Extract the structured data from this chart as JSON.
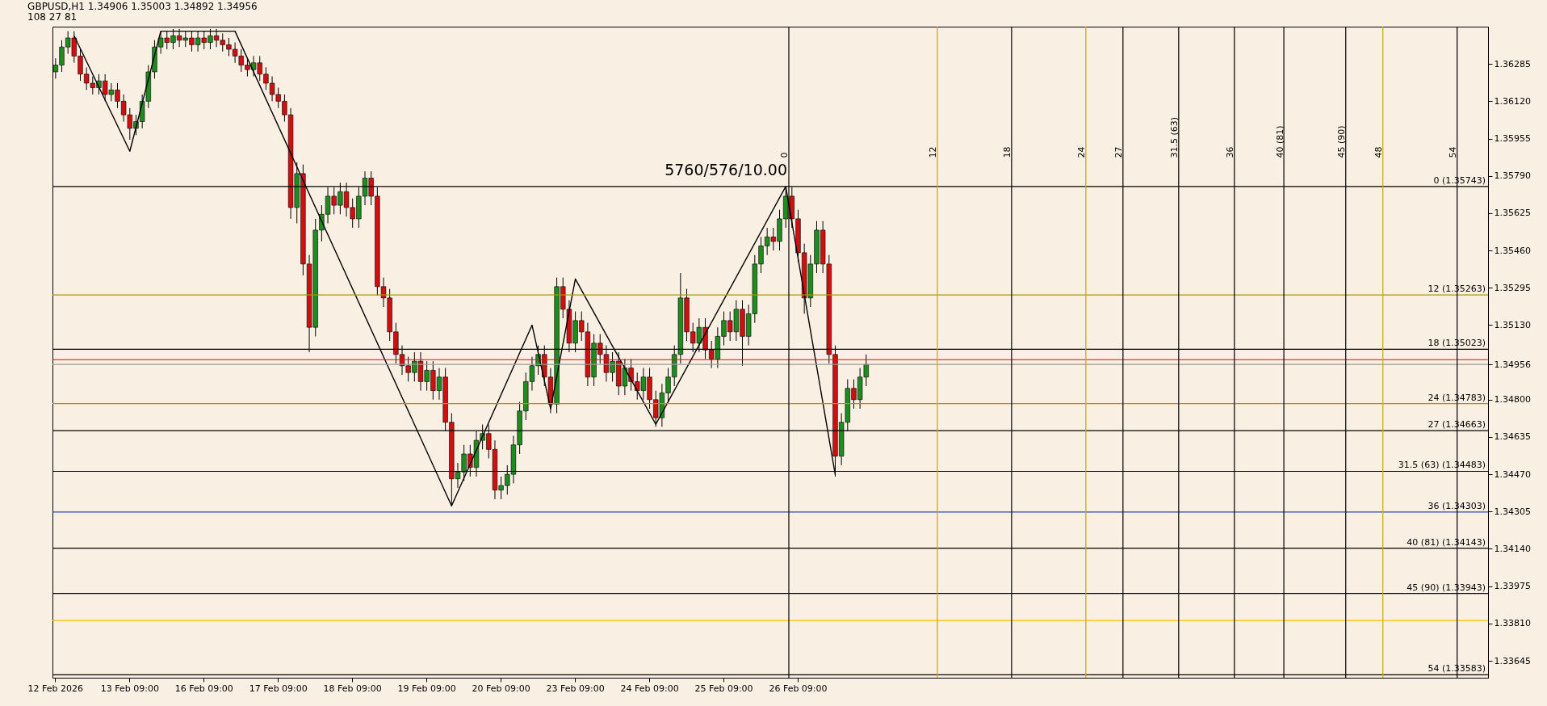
{
  "chart_data": {
    "type": "candlestick",
    "title": "GBPUSD,H1 1.34906 1.35003 1.34892 1.34956",
    "subtitle": "108 27 81",
    "categories": [
      "12 Feb 2026",
      null,
      null,
      null,
      null,
      null,
      null,
      null,
      null,
      null,
      null,
      null,
      "13 Feb 09:00",
      null,
      null,
      null,
      null,
      null,
      null,
      null,
      null,
      null,
      null,
      null,
      "16 Feb 09:00",
      null,
      null,
      null,
      null,
      null,
      null,
      null,
      null,
      null,
      null,
      null,
      "17 Feb 09:00",
      null,
      null,
      null,
      null,
      null,
      null,
      null,
      null,
      null,
      null,
      null,
      "18 Feb 09:00",
      null,
      null,
      null,
      null,
      null,
      null,
      null,
      null,
      null,
      null,
      null,
      "19 Feb 09:00",
      null,
      null,
      null,
      null,
      null,
      null,
      null,
      null,
      null,
      null,
      null,
      "20 Feb 09:00",
      null,
      null,
      null,
      null,
      null,
      null,
      null,
      null,
      null,
      null,
      null,
      "23 Feb 09:00",
      null,
      null,
      null,
      null,
      null,
      null,
      null,
      null,
      null,
      null,
      null,
      "24 Feb 09:00",
      null,
      null,
      null,
      null,
      null,
      null,
      null,
      null,
      null,
      null,
      null,
      "25 Feb 09:00",
      null,
      null,
      null,
      null,
      null,
      null,
      null,
      null,
      null,
      null,
      null,
      "26 Feb 09:00",
      null,
      null,
      null,
      null,
      null,
      null,
      null,
      null,
      null,
      null,
      null,
      null,
      null,
      null,
      null,
      null,
      null,
      null,
      null,
      null,
      null,
      null,
      null,
      null,
      null,
      null,
      null,
      null,
      null,
      null,
      null,
      null,
      null,
      null,
      null,
      null,
      null,
      null,
      null,
      null,
      null,
      null,
      null,
      null,
      null,
      null,
      null,
      null,
      null,
      null,
      null,
      null,
      null,
      null,
      null,
      null,
      null,
      null,
      null,
      null,
      null,
      null,
      null,
      null,
      null,
      null,
      null,
      null,
      null,
      null,
      null,
      null,
      null,
      null,
      null,
      null,
      null,
      null,
      null,
      null,
      null,
      null,
      null,
      null,
      null,
      null,
      null,
      null,
      null,
      null,
      null,
      null,
      null,
      null,
      null,
      null,
      null,
      null,
      null,
      null,
      null,
      null,
      null,
      null,
      null,
      null,
      null,
      null,
      null,
      null,
      null
    ],
    "ohlc": [
      [
        1.3625,
        1.3631,
        1.3622,
        1.3628
      ],
      [
        1.3628,
        1.3639,
        1.3625,
        1.3636
      ],
      [
        1.3636,
        1.3643,
        1.3633,
        1.364
      ],
      [
        1.364,
        1.3643,
        1.3629,
        1.3632
      ],
      [
        1.3632,
        1.3635,
        1.3621,
        1.3624
      ],
      [
        1.3624,
        1.3627,
        1.3617,
        1.362
      ],
      [
        1.362,
        1.3623,
        1.3615,
        1.3618
      ],
      [
        1.3618,
        1.3624,
        1.3615,
        1.3621
      ],
      [
        1.3621,
        1.3624,
        1.3612,
        1.3615
      ],
      [
        1.3615,
        1.362,
        1.3612,
        1.3617
      ],
      [
        1.3617,
        1.362,
        1.3609,
        1.3612
      ],
      [
        1.3612,
        1.3615,
        1.3603,
        1.3606
      ],
      [
        1.3606,
        1.3609,
        1.3595,
        1.36
      ],
      [
        1.36,
        1.3606,
        1.3597,
        1.3603
      ],
      [
        1.3603,
        1.3615,
        1.36,
        1.3612
      ],
      [
        1.3612,
        1.3628,
        1.3609,
        1.3625
      ],
      [
        1.3625,
        1.3639,
        1.3622,
        1.3636
      ],
      [
        1.3636,
        1.3643,
        1.3633,
        1.364
      ],
      [
        1.364,
        1.3643,
        1.3635,
        1.3638
      ],
      [
        1.3638,
        1.3644,
        1.3635,
        1.3641
      ],
      [
        1.3641,
        1.3644,
        1.3636,
        1.3639
      ],
      [
        1.3639,
        1.3643,
        1.3636,
        1.364
      ],
      [
        1.364,
        1.3643,
        1.3634,
        1.3637
      ],
      [
        1.3637,
        1.3643,
        1.3634,
        1.364
      ],
      [
        1.364,
        1.3643,
        1.3635,
        1.3638
      ],
      [
        1.3638,
        1.3644,
        1.3635,
        1.3641
      ],
      [
        1.3641,
        1.3644,
        1.3636,
        1.3639
      ],
      [
        1.3639,
        1.3642,
        1.3634,
        1.3637
      ],
      [
        1.3637,
        1.364,
        1.3632,
        1.3635
      ],
      [
        1.3635,
        1.3638,
        1.3629,
        1.3632
      ],
      [
        1.3632,
        1.3635,
        1.3625,
        1.3628
      ],
      [
        1.3628,
        1.3631,
        1.3623,
        1.3626
      ],
      [
        1.3626,
        1.3632,
        1.3623,
        1.3629
      ],
      [
        1.3629,
        1.3632,
        1.3621,
        1.3624
      ],
      [
        1.3624,
        1.3627,
        1.3617,
        1.362
      ],
      [
        1.362,
        1.3623,
        1.3612,
        1.3615
      ],
      [
        1.3615,
        1.3618,
        1.3609,
        1.3612
      ],
      [
        1.3612,
        1.3615,
        1.3603,
        1.3606
      ],
      [
        1.3606,
        1.3609,
        1.356,
        1.3565
      ],
      [
        1.3565,
        1.3585,
        1.3558,
        1.358
      ],
      [
        1.358,
        1.3584,
        1.3535,
        1.354
      ],
      [
        1.354,
        1.3544,
        1.3501,
        1.3512
      ],
      [
        1.3512,
        1.356,
        1.3508,
        1.3555
      ],
      [
        1.3555,
        1.3566,
        1.355,
        1.3562
      ],
      [
        1.3562,
        1.3574,
        1.3558,
        1.357
      ],
      [
        1.357,
        1.3574,
        1.3562,
        1.3566
      ],
      [
        1.3566,
        1.3576,
        1.3562,
        1.3572
      ],
      [
        1.3572,
        1.3576,
        1.3561,
        1.3565
      ],
      [
        1.3565,
        1.3569,
        1.3556,
        1.356
      ],
      [
        1.356,
        1.3574,
        1.3556,
        1.357
      ],
      [
        1.357,
        1.3581,
        1.3566,
        1.3578
      ],
      [
        1.3578,
        1.3581,
        1.3566,
        1.357
      ],
      [
        1.357,
        1.3574,
        1.3526,
        1.353
      ],
      [
        1.353,
        1.3534,
        1.3521,
        1.3525
      ],
      [
        1.3525,
        1.3529,
        1.3506,
        1.351
      ],
      [
        1.351,
        1.3514,
        1.3496,
        1.35
      ],
      [
        1.35,
        1.3504,
        1.3491,
        1.3495
      ],
      [
        1.3495,
        1.3499,
        1.3488,
        1.3492
      ],
      [
        1.3492,
        1.3501,
        1.3488,
        1.3497
      ],
      [
        1.3497,
        1.3501,
        1.3484,
        1.3488
      ],
      [
        1.3488,
        1.3497,
        1.3484,
        1.3493
      ],
      [
        1.3493,
        1.3497,
        1.348,
        1.3484
      ],
      [
        1.3484,
        1.3494,
        1.348,
        1.349
      ],
      [
        1.349,
        1.3494,
        1.3466,
        1.347
      ],
      [
        1.347,
        1.3474,
        1.3433,
        1.3445
      ],
      [
        1.3445,
        1.3452,
        1.3441,
        1.3448
      ],
      [
        1.3448,
        1.346,
        1.3444,
        1.3456
      ],
      [
        1.3456,
        1.346,
        1.3446,
        1.345
      ],
      [
        1.345,
        1.3466,
        1.3446,
        1.3462
      ],
      [
        1.3462,
        1.3469,
        1.3458,
        1.3465
      ],
      [
        1.3465,
        1.3469,
        1.3454,
        1.3458
      ],
      [
        1.3458,
        1.3462,
        1.3436,
        1.344
      ],
      [
        1.344,
        1.3446,
        1.3436,
        1.3442
      ],
      [
        1.3442,
        1.3451,
        1.3438,
        1.3447
      ],
      [
        1.3447,
        1.3464,
        1.3443,
        1.346
      ],
      [
        1.346,
        1.3479,
        1.3456,
        1.3475
      ],
      [
        1.3475,
        1.3492,
        1.3471,
        1.3488
      ],
      [
        1.3488,
        1.3499,
        1.3484,
        1.3495
      ],
      [
        1.3495,
        1.3504,
        1.3491,
        1.35
      ],
      [
        1.35,
        1.3504,
        1.3486,
        1.349
      ],
      [
        1.349,
        1.3494,
        1.3474,
        1.3478
      ],
      [
        1.3478,
        1.3534,
        1.3474,
        1.353
      ],
      [
        1.353,
        1.3534,
        1.3516,
        1.352
      ],
      [
        1.352,
        1.3524,
        1.3501,
        1.3505
      ],
      [
        1.3505,
        1.3519,
        1.3501,
        1.3515
      ],
      [
        1.3515,
        1.3519,
        1.3506,
        1.351
      ],
      [
        1.351,
        1.3514,
        1.3486,
        1.349
      ],
      [
        1.349,
        1.3509,
        1.3486,
        1.3505
      ],
      [
        1.3505,
        1.3509,
        1.3496,
        1.35
      ],
      [
        1.35,
        1.3504,
        1.3488,
        1.3492
      ],
      [
        1.3492,
        1.3501,
        1.3488,
        1.3497
      ],
      [
        1.3497,
        1.3501,
        1.3482,
        1.3486
      ],
      [
        1.3486,
        1.3498,
        1.3482,
        1.3494
      ],
      [
        1.3494,
        1.3498,
        1.3484,
        1.3488
      ],
      [
        1.3488,
        1.3492,
        1.348,
        1.3484
      ],
      [
        1.3484,
        1.3494,
        1.348,
        1.349
      ],
      [
        1.349,
        1.3494,
        1.3476,
        1.348
      ],
      [
        1.348,
        1.3484,
        1.3468,
        1.3472
      ],
      [
        1.3472,
        1.3487,
        1.3468,
        1.3483
      ],
      [
        1.3483,
        1.3494,
        1.3479,
        1.349
      ],
      [
        1.349,
        1.3504,
        1.3486,
        1.35
      ],
      [
        1.35,
        1.3536,
        1.3496,
        1.3525
      ],
      [
        1.3525,
        1.3529,
        1.3506,
        1.351
      ],
      [
        1.351,
        1.3514,
        1.3501,
        1.3505
      ],
      [
        1.3505,
        1.3516,
        1.3501,
        1.3512
      ],
      [
        1.3512,
        1.3516,
        1.3498,
        1.3502
      ],
      [
        1.3502,
        1.3506,
        1.3494,
        1.3498
      ],
      [
        1.3498,
        1.3512,
        1.3494,
        1.3508
      ],
      [
        1.3508,
        1.3519,
        1.3504,
        1.3515
      ],
      [
        1.3515,
        1.3519,
        1.3506,
        1.351
      ],
      [
        1.351,
        1.3524,
        1.3506,
        1.352
      ],
      [
        1.352,
        1.3524,
        1.3495,
        1.3508
      ],
      [
        1.3508,
        1.3522,
        1.3504,
        1.3518
      ],
      [
        1.3518,
        1.3544,
        1.3514,
        1.354
      ],
      [
        1.354,
        1.3552,
        1.3536,
        1.3548
      ],
      [
        1.3548,
        1.3556,
        1.3544,
        1.3552
      ],
      [
        1.3552,
        1.3556,
        1.3546,
        1.355
      ],
      [
        1.355,
        1.3564,
        1.3546,
        1.356
      ],
      [
        1.356,
        1.3574,
        1.3556,
        1.357
      ],
      [
        1.357,
        1.3574,
        1.3556,
        1.356
      ],
      [
        1.356,
        1.3564,
        1.3541,
        1.3545
      ],
      [
        1.3545,
        1.3549,
        1.3518,
        1.3525
      ],
      [
        1.3525,
        1.3544,
        1.3521,
        1.354
      ],
      [
        1.354,
        1.3559,
        1.3536,
        1.3555
      ],
      [
        1.3555,
        1.3559,
        1.3536,
        1.354
      ],
      [
        1.354,
        1.3544,
        1.3496,
        1.35
      ],
      [
        1.35,
        1.3504,
        1.3446,
        1.3455
      ],
      [
        1.3455,
        1.3474,
        1.3451,
        1.347
      ],
      [
        1.347,
        1.3489,
        1.3466,
        1.3485
      ],
      [
        1.3485,
        1.3489,
        1.3476,
        1.348
      ],
      [
        1.348,
        1.3494,
        1.3476,
        1.349
      ],
      [
        1.349,
        1.35,
        1.3486,
        1.34956
      ],
      null,
      null,
      null,
      null,
      null,
      null,
      null,
      null,
      null,
      null,
      null,
      null,
      null,
      null,
      null,
      null,
      null,
      null,
      null,
      null,
      null,
      null,
      null,
      null,
      null,
      null,
      null,
      null,
      null,
      null,
      null,
      null,
      null,
      null,
      null,
      null,
      null,
      null,
      null,
      null,
      null,
      null,
      null,
      null,
      null,
      null,
      null,
      null,
      null,
      null,
      null,
      null,
      null,
      null,
      null,
      null,
      null,
      null,
      null,
      null,
      null,
      null,
      null,
      null,
      null,
      null,
      null,
      null,
      null,
      null,
      null,
      null,
      null,
      null,
      null,
      null,
      null,
      null,
      null,
      null,
      null,
      null,
      null,
      null,
      null,
      null,
      null,
      null,
      null,
      null,
      null,
      null,
      null,
      null,
      null,
      null,
      null,
      null,
      null,
      null
    ],
    "series": [
      {
        "type": "line",
        "color": "#000000",
        "values": [
          null,
          null,
          null,
          1.3641,
          null,
          null,
          null,
          null,
          null,
          null,
          null,
          null,
          1.35899,
          null,
          null,
          null,
          null,
          1.3643,
          null,
          null,
          null,
          null,
          null,
          null,
          null,
          null,
          null,
          null,
          null,
          1.3643,
          null,
          null,
          null,
          null,
          null,
          null,
          null,
          null,
          null,
          null,
          null,
          null,
          null,
          null,
          null,
          null,
          null,
          null,
          null,
          null,
          null,
          null,
          null,
          null,
          null,
          null,
          null,
          null,
          null,
          null,
          null,
          null,
          null,
          null,
          1.3433,
          null,
          null,
          null,
          null,
          null,
          null,
          null,
          null,
          null,
          null,
          null,
          null,
          1.3513,
          null,
          null,
          1.3476,
          null,
          null,
          null,
          1.35334,
          null,
          null,
          null,
          null,
          null,
          null,
          null,
          null,
          null,
          null,
          null,
          null,
          1.34691,
          null,
          null,
          null,
          null,
          null,
          null,
          null,
          null,
          null,
          null,
          null,
          null,
          null,
          null,
          null,
          null,
          null,
          null,
          null,
          null,
          1.35743,
          null,
          null,
          null,
          null,
          null,
          null,
          null,
          1.34468,
          null,
          null,
          null,
          null,
          null,
          null,
          null,
          null,
          null,
          null,
          null,
          null,
          null,
          null,
          null,
          null,
          null,
          null,
          null,
          null,
          null,
          null,
          null,
          null,
          null,
          null,
          null,
          null,
          null,
          null,
          null,
          null,
          null,
          null,
          null,
          null,
          null,
          null,
          null,
          null,
          null,
          null,
          null,
          null,
          null,
          null,
          null,
          null,
          null,
          null,
          null,
          null,
          null,
          null,
          null,
          null,
          null,
          null,
          null,
          null,
          null,
          null,
          null,
          null,
          null,
          null,
          null,
          null,
          null,
          null,
          null,
          null,
          null,
          null,
          null,
          null,
          null,
          null,
          null,
          null,
          null,
          null,
          null,
          null,
          null,
          null,
          null,
          null,
          null,
          null,
          null,
          null,
          null,
          null,
          null,
          null,
          null,
          null,
          null,
          null,
          null,
          null,
          null,
          null,
          null
        ]
      }
    ],
    "ref_lines": [
      {
        "axis": "x2",
        "value": 0,
        "color": "#000000"
      },
      {
        "axis": "x2",
        "value": 12,
        "color": "#c8a800"
      },
      {
        "axis": "x2",
        "value": 18,
        "color": "#000000"
      },
      {
        "axis": "x2",
        "value": 24,
        "color": "#c8a800"
      },
      {
        "axis": "x2",
        "value": 27,
        "color": "#000000"
      },
      {
        "axis": "x2",
        "value": 31.5,
        "color": "#000000"
      },
      {
        "axis": "x2",
        "value": 36,
        "color": "#000000"
      },
      {
        "axis": "x2",
        "value": 40,
        "color": "#000000"
      },
      {
        "axis": "x2",
        "value": 45,
        "color": "#000000"
      },
      {
        "axis": "x2",
        "value": 48,
        "color": "#c8a800"
      },
      {
        "axis": "x2",
        "value": 54,
        "color": "#000000"
      },
      {
        "axis": "y",
        "value": 1.35743,
        "label": "0 (1.35743)",
        "color": "#000000"
      },
      {
        "axis": "y",
        "value": 1.35263,
        "label": "12 (1.35263)",
        "color": "#a89800"
      },
      {
        "axis": "y",
        "value": 1.35023,
        "label": "18 (1.35023)",
        "color": "#000000"
      },
      {
        "axis": "y",
        "value": 1.34783,
        "label": "24 (1.34783)",
        "color": "#a89800"
      },
      {
        "axis": "y",
        "value": 1.34663,
        "label": "27 (1.34663)",
        "color": "#000000"
      },
      {
        "axis": "y",
        "value": 1.34483,
        "label": "31.5 (63) (1.34483)",
        "color": "#000000"
      },
      {
        "axis": "y",
        "value": 1.34303,
        "label": "36 (1.34303)",
        "color": "#1f4fa0"
      },
      {
        "axis": "y",
        "value": 1.34143,
        "label": "40 (81) (1.34143)",
        "color": "#000000"
      },
      {
        "axis": "y",
        "value": 1.33943,
        "label": "45 (90) (1.33943)",
        "color": "#000000"
      },
      {
        "axis": "y",
        "value": 1.33823,
        "color": "#ffc000"
      },
      {
        "axis": "y",
        "value": 1.33583,
        "label": "54 (1.33583)",
        "color": "#000000"
      },
      {
        "axis": "y",
        "value": 1.34977,
        "color": "#ff0000"
      },
      {
        "axis": "y",
        "value": 1.34956,
        "color": "#999999"
      }
    ],
    "annotations": [
      "5760/576/10.00"
    ],
    "ylim": [
      1.3357,
      1.3645
    ],
    "x2lim": [
      -59.5,
      56.5
    ],
    "x2ticks": [
      0,
      12,
      18,
      24,
      27,
      {
        "value": 31.5,
        "label": "31.5 (63)"
      },
      36,
      {
        "value": 40,
        "label": "40 (81)"
      },
      {
        "value": 45,
        "label": "45 (90)"
      },
      48,
      54
    ],
    "yticks": [
      1.33645,
      {
        "value": 1.3381,
        "label": "1.33810"
      },
      1.33975,
      {
        "value": 1.3414,
        "label": "1.34140"
      },
      1.34305,
      {
        "value": 1.3447,
        "label": "1.34470"
      },
      1.34635,
      {
        "value": 1.348,
        "label": "1.34800"
      },
      1.34956,
      {
        "value": 1.3513,
        "label": "1.35130"
      },
      1.35295,
      {
        "value": 1.3546,
        "label": "1.35460"
      },
      1.35625,
      {
        "value": 1.3579,
        "label": "1.35790"
      },
      1.35955,
      {
        "value": 1.3612,
        "label": "1.36120"
      },
      1.36285
    ],
    "grid": false
  }
}
